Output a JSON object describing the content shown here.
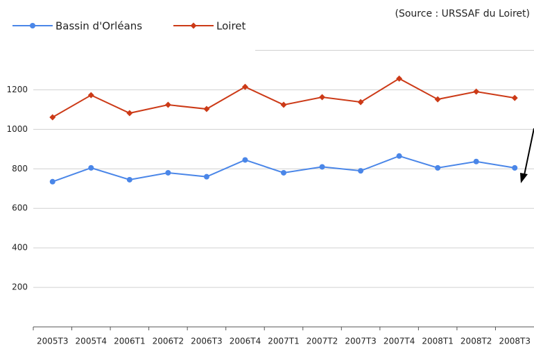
{
  "chart_data": {
    "type": "line",
    "source": "(Source : URSSAF du Loiret)",
    "categories": [
      "2005T3",
      "2005T4",
      "2006T1",
      "2006T2",
      "2006T3",
      "2006T4",
      "2007T1",
      "2007T2",
      "2007T3",
      "2007T4",
      "2008T1",
      "2008T2",
      "2008T3"
    ],
    "series": [
      {
        "name": "Bassin d'Orléans",
        "color": "#4a86e8",
        "marker": "circle",
        "values": [
          735,
          805,
          745,
          780,
          760,
          845,
          780,
          810,
          790,
          865,
          805,
          837,
          805
        ]
      },
      {
        "name": "Loiret",
        "color": "#cc3a17",
        "marker": "diamond",
        "values": [
          1061,
          1173,
          1082,
          1124,
          1103,
          1215,
          1124,
          1163,
          1138,
          1257,
          1152,
          1191,
          1159
        ]
      }
    ],
    "ylim": [
      0,
      1400
    ],
    "yticks": [
      200,
      400,
      600,
      800,
      1000,
      1200,
      1400
    ],
    "grid": true
  }
}
